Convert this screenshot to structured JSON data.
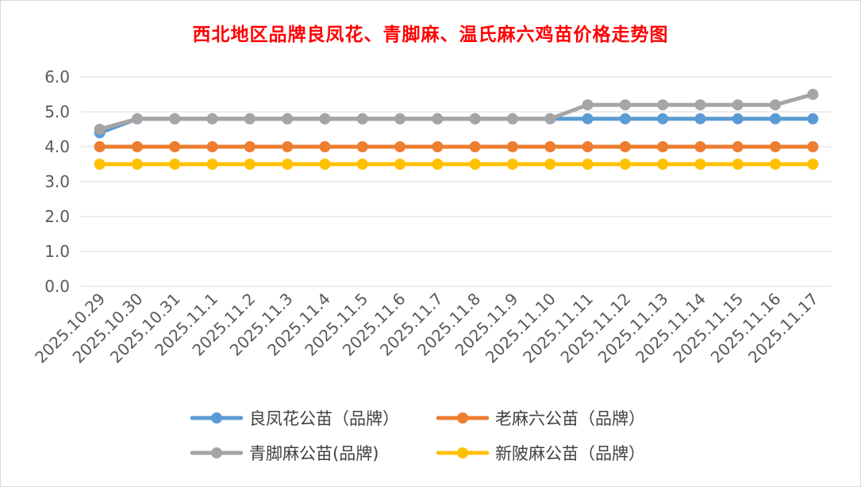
{
  "chart_data": {
    "type": "line",
    "title": "西北地区品牌良凤花、青脚麻、温氏麻六鸡苗价格走势图",
    "categories": [
      "2025.10.29",
      "2025.10.30",
      "2025.10.31",
      "2025.11.1",
      "2025.11.2",
      "2025.11.3",
      "2025.11.4",
      "2025.11.5",
      "2025.11.6",
      "2025.11.7",
      "2025.11.8",
      "2025.11.9",
      "2025.11.10",
      "2025.11.11",
      "2025.11.12",
      "2025.11.13",
      "2025.11.14",
      "2025.11.15",
      "2025.11.16",
      "2025.11.17"
    ],
    "ylim": [
      0,
      6
    ],
    "yticks": [
      "0.0",
      "1.0",
      "2.0",
      "3.0",
      "4.0",
      "5.0",
      "6.0"
    ],
    "grid": true,
    "legend_position": "bottom",
    "series": [
      {
        "name": "良凤花公苗（品牌）",
        "color": "#5b9bd5",
        "values": [
          4.4,
          4.8,
          4.8,
          4.8,
          4.8,
          4.8,
          4.8,
          4.8,
          4.8,
          4.8,
          4.8,
          4.8,
          4.8,
          4.8,
          4.8,
          4.8,
          4.8,
          4.8,
          4.8,
          4.8
        ]
      },
      {
        "name": "老麻六公苗（品牌）",
        "color": "#ed7d31",
        "values": [
          4.0,
          4.0,
          4.0,
          4.0,
          4.0,
          4.0,
          4.0,
          4.0,
          4.0,
          4.0,
          4.0,
          4.0,
          4.0,
          4.0,
          4.0,
          4.0,
          4.0,
          4.0,
          4.0,
          4.0
        ]
      },
      {
        "name": "青脚麻公苗(品牌)",
        "color": "#a5a5a5",
        "values": [
          4.5,
          4.8,
          4.8,
          4.8,
          4.8,
          4.8,
          4.8,
          4.8,
          4.8,
          4.8,
          4.8,
          4.8,
          4.8,
          5.2,
          5.2,
          5.2,
          5.2,
          5.2,
          5.2,
          5.5
        ]
      },
      {
        "name": "新陂麻公苗（品牌）",
        "color": "#ffc000",
        "values": [
          3.5,
          3.5,
          3.5,
          3.5,
          3.5,
          3.5,
          3.5,
          3.5,
          3.5,
          3.5,
          3.5,
          3.5,
          3.5,
          3.5,
          3.5,
          3.5,
          3.5,
          3.5,
          3.5,
          3.5
        ]
      }
    ]
  }
}
